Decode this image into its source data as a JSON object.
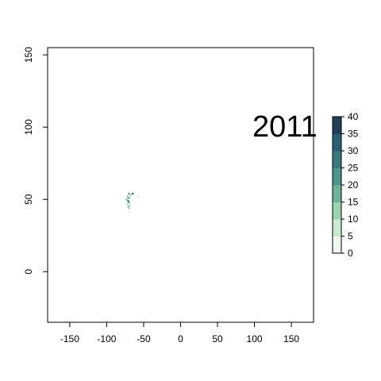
{
  "chart_data": {
    "type": "heatmap",
    "annotation": "2011",
    "xlim": [
      -180,
      180
    ],
    "ylim": [
      -35,
      155
    ],
    "x_ticks": [
      -150,
      -100,
      -50,
      0,
      50,
      100,
      150
    ],
    "y_ticks": [
      0,
      50,
      100,
      150
    ],
    "grid": false,
    "legend": {
      "placement": "right",
      "type": "colorbar",
      "range": [
        0,
        40
      ],
      "ticks": [
        0,
        5,
        10,
        15,
        20,
        25,
        30,
        35,
        40
      ],
      "colors": [
        "#eef8ee",
        "#c9eccf",
        "#9bd3b0",
        "#6bb69a",
        "#4a968a",
        "#377a80",
        "#2b5f74",
        "#203f5a"
      ]
    },
    "cells": [
      {
        "x": -70,
        "y": 54,
        "value": 22
      },
      {
        "x": -68,
        "y": 53,
        "value": 12
      },
      {
        "x": -72,
        "y": 52,
        "value": 18
      },
      {
        "x": -70,
        "y": 51,
        "value": 24
      },
      {
        "x": -73,
        "y": 50,
        "value": 15
      },
      {
        "x": -71,
        "y": 49,
        "value": 28
      },
      {
        "x": -70,
        "y": 48,
        "value": 20
      },
      {
        "x": -72,
        "y": 47,
        "value": 14
      },
      {
        "x": -69,
        "y": 46,
        "value": 10
      },
      {
        "x": -71,
        "y": 45,
        "value": 16
      },
      {
        "x": -70,
        "y": 44,
        "value": 12
      },
      {
        "x": -70,
        "y": 42,
        "value": 8
      },
      {
        "x": -65,
        "y": 54,
        "value": 30
      },
      {
        "x": -57,
        "y": 52,
        "value": 6
      }
    ]
  }
}
